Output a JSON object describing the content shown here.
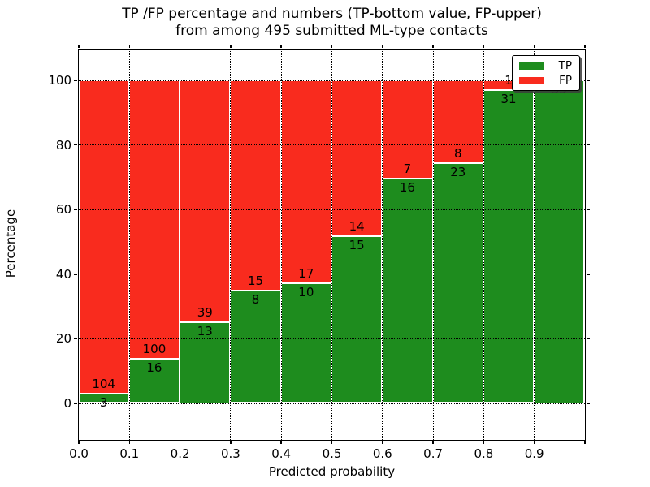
{
  "title": {
    "line1": "TP /FP percentage and numbers (TP-bottom value, FP-upper)",
    "line2": "from among 495 submitted ML-type contacts"
  },
  "axes": {
    "xlabel": "Predicted probability",
    "ylabel": "Percentage"
  },
  "legend": {
    "position": "upper right",
    "items": [
      {
        "label": "TP",
        "color": "#1e8c1e"
      },
      {
        "label": "FP",
        "color": "#f92b1e"
      }
    ]
  },
  "chart_data": {
    "type": "bar",
    "variant": "stacked-percentage-histogram",
    "title": "TP /FP percentage and numbers (TP-bottom value, FP-upper) from among 495 submitted ML-type contacts",
    "xlabel": "Predicted probability",
    "ylabel": "Percentage",
    "total_contacts": 495,
    "bin_width": 0.1,
    "bin_edges": [
      0.0,
      0.1,
      0.2,
      0.3,
      0.4,
      0.5,
      0.6,
      0.7,
      0.8,
      0.9,
      1.0
    ],
    "categories": [
      "0.0-0.1",
      "0.1-0.2",
      "0.2-0.3",
      "0.3-0.4",
      "0.4-0.5",
      "0.5-0.6",
      "0.6-0.7",
      "0.7-0.8",
      "0.8-0.9",
      "0.9-1.0"
    ],
    "series": [
      {
        "name": "TP",
        "color": "#1e8c1e",
        "counts": [
          3,
          16,
          13,
          8,
          10,
          15,
          16,
          23,
          31,
          55
        ],
        "percent": [
          2.8,
          13.79,
          25.0,
          34.78,
          37.04,
          51.72,
          69.57,
          74.19,
          96.88,
          100.0
        ]
      },
      {
        "name": "FP",
        "color": "#f92b1e",
        "counts": [
          104,
          100,
          39,
          15,
          17,
          14,
          7,
          8,
          1,
          0
        ],
        "percent": [
          97.2,
          86.21,
          75.0,
          65.22,
          62.96,
          48.28,
          30.43,
          25.81,
          3.12,
          0.0
        ]
      }
    ],
    "label_convention": "TP count below segment boundary, FP count above segment boundary",
    "yticks": [
      0,
      20,
      40,
      60,
      80,
      100
    ],
    "xtick_labels": [
      "0.0",
      "0.1",
      "0.2",
      "0.3",
      "0.4",
      "0.5",
      "0.6",
      "0.7",
      "0.8",
      "0.9"
    ],
    "xlim": [
      0.0,
      1.0
    ],
    "ylim": [
      -11,
      110
    ],
    "grid": true,
    "grid_style": "dotted",
    "legend_position": "upper right"
  }
}
